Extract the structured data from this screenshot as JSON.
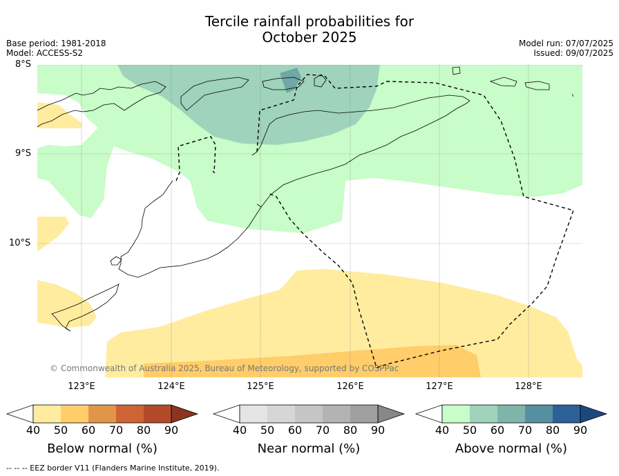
{
  "header": {
    "title_line1": "Tercile rainfall probabilities for",
    "title_line2": "October 2025",
    "base_period": "Base period: 1981-2018",
    "model": "Model: ACCESS-S2",
    "model_run": "Model run: 07/07/2025",
    "issued": "Issued: 09/07/2025"
  },
  "map": {
    "lat_labels": [
      "8°S",
      "9°S",
      "10°S"
    ],
    "lon_labels": [
      "123°E",
      "124°E",
      "125°E",
      "126°E",
      "127°E",
      "128°E"
    ],
    "copyright": "© Commonwealth of Australia 2025, Bureau of Meteorology, supported by COSPPac",
    "colors": {
      "above_50": "#c8fcc8",
      "above_60": "#9fd3bb",
      "above_70": "#6fa8a4",
      "below_50": "#ffec9f",
      "below_60": "#ffcd6a",
      "coast": "#000000",
      "eez": "#000000"
    }
  },
  "colorbars": [
    {
      "name": "Below normal (%)",
      "ticks": [
        "40",
        "50",
        "60",
        "70",
        "80",
        "90"
      ],
      "colors": [
        "#ffffff",
        "#ffec9f",
        "#ffcd6a",
        "#e2954a",
        "#cc6433",
        "#b04a28",
        "#8b3520"
      ]
    },
    {
      "name": "Near normal (%)",
      "ticks": [
        "40",
        "50",
        "60",
        "70",
        "80",
        "90"
      ],
      "colors": [
        "#ffffff",
        "#e5e5e5",
        "#d6d6d6",
        "#c5c5c5",
        "#b3b3b3",
        "#a0a0a0",
        "#888888"
      ]
    },
    {
      "name": "Above normal (%)",
      "ticks": [
        "40",
        "50",
        "60",
        "70",
        "80",
        "90"
      ],
      "colors": [
        "#ffffff",
        "#c8fcc8",
        "#9fd3bb",
        "#7fb4aa",
        "#568f9f",
        "#2d6097",
        "#1f477f"
      ]
    }
  ],
  "footer": {
    "eez_legend": "--  --  -- EEZ border V11 (Flanders Marine Institute, 2019)."
  }
}
